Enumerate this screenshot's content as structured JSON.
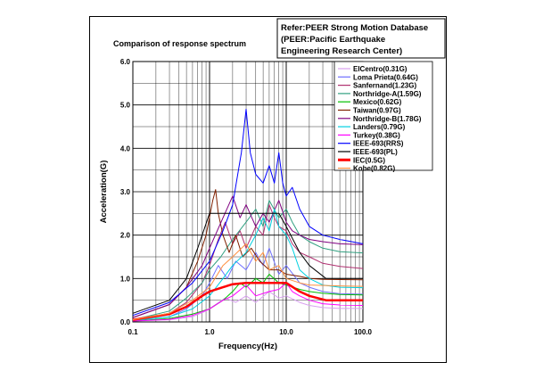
{
  "chart_data": {
    "type": "line",
    "title": "Comparison of response spectrum",
    "reference_lines": [
      "Refer:PEER Strong Motion Database",
      "(PEER:Pacific Earthquake",
      "Engineering Research Center)"
    ],
    "xlabel": "Frequency(Hz)",
    "ylabel": "Acceleration(G)",
    "x_scale": "log",
    "xlim": [
      0.1,
      100
    ],
    "ylim": [
      0,
      6
    ],
    "x_ticks": [
      "0.1",
      "1.0",
      "10.0",
      "100.0"
    ],
    "y_ticks": [
      "0.0",
      "1.0",
      "2.0",
      "3.0",
      "4.0",
      "5.0",
      "6.0"
    ],
    "grid": true,
    "legend_position": "top-right",
    "series": [
      {
        "name": "ElCentro(0.31G)",
        "color": "#d8a0f0",
        "width": 1,
        "points": [
          [
            0.1,
            0.02
          ],
          [
            0.3,
            0.05
          ],
          [
            0.6,
            0.12
          ],
          [
            0.9,
            0.25
          ],
          [
            1.2,
            0.4
          ],
          [
            1.6,
            0.55
          ],
          [
            2.2,
            0.45
          ],
          [
            3,
            0.6
          ],
          [
            4,
            0.45
          ],
          [
            6,
            0.7
          ],
          [
            8,
            0.55
          ],
          [
            10,
            0.6
          ],
          [
            15,
            0.45
          ],
          [
            20,
            0.38
          ],
          [
            30,
            0.33
          ],
          [
            50,
            0.31
          ],
          [
            100,
            0.31
          ]
        ]
      },
      {
        "name": "Loma Prieta(0.64G)",
        "color": "#7070ff",
        "width": 1,
        "points": [
          [
            0.1,
            0.04
          ],
          [
            0.3,
            0.12
          ],
          [
            0.5,
            0.3
          ],
          [
            0.8,
            0.6
          ],
          [
            1.0,
            0.9
          ],
          [
            1.3,
            1.3
          ],
          [
            1.7,
            1.0
          ],
          [
            2.2,
            1.4
          ],
          [
            3,
            1.2
          ],
          [
            4,
            1.6
          ],
          [
            5,
            1.3
          ],
          [
            6,
            1.7
          ],
          [
            8,
            1.1
          ],
          [
            10,
            1.3
          ],
          [
            15,
            0.9
          ],
          [
            20,
            0.8
          ],
          [
            30,
            0.7
          ],
          [
            50,
            0.65
          ],
          [
            100,
            0.64
          ]
        ]
      },
      {
        "name": "Sanfernand(1.23G)",
        "color": "#b03070",
        "width": 1,
        "points": [
          [
            0.1,
            0.05
          ],
          [
            0.3,
            0.2
          ],
          [
            0.5,
            0.45
          ],
          [
            0.8,
            0.9
          ],
          [
            1.0,
            1.3
          ],
          [
            1.3,
            1.9
          ],
          [
            1.6,
            2.3
          ],
          [
            2.0,
            1.8
          ],
          [
            2.5,
            2.1
          ],
          [
            3,
            1.7
          ],
          [
            4,
            2.2
          ],
          [
            5,
            2.0
          ],
          [
            6,
            2.7
          ],
          [
            7,
            2.4
          ],
          [
            8,
            2.2
          ],
          [
            10,
            2.1
          ],
          [
            12,
            1.8
          ],
          [
            15,
            1.6
          ],
          [
            20,
            1.5
          ],
          [
            30,
            1.35
          ],
          [
            50,
            1.28
          ],
          [
            100,
            1.23
          ]
        ]
      },
      {
        "name": "Northridge-A(1.59G)",
        "color": "#30a080",
        "width": 1,
        "points": [
          [
            0.1,
            0.05
          ],
          [
            0.3,
            0.25
          ],
          [
            0.5,
            0.55
          ],
          [
            0.8,
            0.9
          ],
          [
            1.0,
            1.2
          ],
          [
            1.4,
            1.5
          ],
          [
            2,
            1.9
          ],
          [
            3,
            2.3
          ],
          [
            4,
            2.6
          ],
          [
            5,
            2.2
          ],
          [
            6,
            2.8
          ],
          [
            8,
            2.4
          ],
          [
            10,
            2.6
          ],
          [
            12,
            2.3
          ],
          [
            15,
            2.0
          ],
          [
            20,
            1.85
          ],
          [
            30,
            1.7
          ],
          [
            50,
            1.62
          ],
          [
            100,
            1.59
          ]
        ]
      },
      {
        "name": "Mexico(0.62G)",
        "color": "#00c000",
        "width": 1,
        "points": [
          [
            0.1,
            0.02
          ],
          [
            0.3,
            0.08
          ],
          [
            0.6,
            0.18
          ],
          [
            1.0,
            0.3
          ],
          [
            1.5,
            0.5
          ],
          [
            2.0,
            0.7
          ],
          [
            2.5,
            0.9
          ],
          [
            3,
            0.8
          ],
          [
            4,
            1.0
          ],
          [
            5,
            0.9
          ],
          [
            6,
            1.1
          ],
          [
            8,
            0.9
          ],
          [
            10,
            0.85
          ],
          [
            15,
            0.75
          ],
          [
            20,
            0.7
          ],
          [
            30,
            0.66
          ],
          [
            50,
            0.63
          ],
          [
            100,
            0.62
          ]
        ]
      },
      {
        "name": "Taiwan(0.97G)",
        "color": "#802000",
        "width": 1,
        "points": [
          [
            0.1,
            0.1
          ],
          [
            0.3,
            0.4
          ],
          [
            0.5,
            0.8
          ],
          [
            0.7,
            1.4
          ],
          [
            0.9,
            2.0
          ],
          [
            1.1,
            2.8
          ],
          [
            1.2,
            3.05
          ],
          [
            1.3,
            2.5
          ],
          [
            1.5,
            2.0
          ],
          [
            1.8,
            1.6
          ],
          [
            2.2,
            2.0
          ],
          [
            2.7,
            1.5
          ],
          [
            3.5,
            1.7
          ],
          [
            4.5,
            1.4
          ],
          [
            6,
            1.2
          ],
          [
            8,
            1.2
          ],
          [
            10,
            1.1
          ],
          [
            15,
            1.05
          ],
          [
            20,
            1.0
          ],
          [
            30,
            0.98
          ],
          [
            100,
            0.97
          ]
        ]
      },
      {
        "name": "Northridge-B(1.78G)",
        "color": "#800080",
        "width": 1,
        "points": [
          [
            0.1,
            0.1
          ],
          [
            0.3,
            0.4
          ],
          [
            0.5,
            0.8
          ],
          [
            0.8,
            1.3
          ],
          [
            1.0,
            1.7
          ],
          [
            1.5,
            2.4
          ],
          [
            2,
            2.9
          ],
          [
            2.5,
            2.4
          ],
          [
            3,
            2.7
          ],
          [
            4,
            2.2
          ],
          [
            5,
            2.5
          ],
          [
            6,
            2.3
          ],
          [
            8,
            2.8
          ],
          [
            10,
            2.3
          ],
          [
            12,
            2.1
          ],
          [
            15,
            2.0
          ],
          [
            20,
            1.9
          ],
          [
            30,
            1.85
          ],
          [
            50,
            1.8
          ],
          [
            100,
            1.78
          ]
        ]
      },
      {
        "name": "Landers(0.79G)",
        "color": "#00d0e0",
        "width": 1,
        "points": [
          [
            0.1,
            0.03
          ],
          [
            0.3,
            0.12
          ],
          [
            0.6,
            0.3
          ],
          [
            1.0,
            0.6
          ],
          [
            1.5,
            1.0
          ],
          [
            2,
            1.3
          ],
          [
            3,
            1.6
          ],
          [
            4,
            2.0
          ],
          [
            5,
            2.4
          ],
          [
            6,
            2.1
          ],
          [
            7,
            2.6
          ],
          [
            8,
            2.2
          ],
          [
            10,
            2.0
          ],
          [
            12,
            1.7
          ],
          [
            15,
            1.2
          ],
          [
            20,
            1.0
          ],
          [
            30,
            0.85
          ],
          [
            50,
            0.8
          ],
          [
            100,
            0.79
          ]
        ]
      },
      {
        "name": "Turkey(0.38G)",
        "color": "#ff00ff",
        "width": 1,
        "points": [
          [
            0.1,
            0.02
          ],
          [
            0.3,
            0.06
          ],
          [
            0.6,
            0.15
          ],
          [
            1.0,
            0.3
          ],
          [
            1.5,
            0.5
          ],
          [
            2,
            0.6
          ],
          [
            3,
            0.85
          ],
          [
            4,
            0.6
          ],
          [
            6,
            0.7
          ],
          [
            8,
            0.75
          ],
          [
            10,
            0.9
          ],
          [
            12,
            0.7
          ],
          [
            15,
            0.6
          ],
          [
            20,
            0.5
          ],
          [
            30,
            0.42
          ],
          [
            50,
            0.39
          ],
          [
            100,
            0.38
          ]
        ]
      },
      {
        "name": "IEEE-693(RRS)",
        "color": "#0000ff",
        "width": 1,
        "points": [
          [
            0.1,
            0.15
          ],
          [
            0.3,
            0.45
          ],
          [
            0.6,
            0.9
          ],
          [
            1.0,
            1.4
          ],
          [
            1.5,
            2.1
          ],
          [
            2,
            2.7
          ],
          [
            2.6,
            3.9
          ],
          [
            3,
            4.9
          ],
          [
            3.4,
            3.9
          ],
          [
            4,
            3.4
          ],
          [
            5,
            3.2
          ],
          [
            6,
            3.6
          ],
          [
            7,
            3.2
          ],
          [
            8,
            3.9
          ],
          [
            9,
            3.2
          ],
          [
            10,
            2.9
          ],
          [
            12,
            3.1
          ],
          [
            15,
            2.6
          ],
          [
            20,
            2.2
          ],
          [
            30,
            2.0
          ],
          [
            50,
            1.9
          ],
          [
            100,
            1.8
          ]
        ]
      },
      {
        "name": "IEEE-693(PL)",
        "color": "#000000",
        "width": 1,
        "points": [
          [
            0.1,
            0.2
          ],
          [
            0.3,
            0.5
          ],
          [
            0.5,
            1.0
          ],
          [
            0.7,
            1.7
          ],
          [
            1.0,
            2.5
          ],
          [
            8,
            2.5
          ],
          [
            10,
            2.2
          ],
          [
            15,
            1.6
          ],
          [
            20,
            1.3
          ],
          [
            33,
            1.0
          ],
          [
            100,
            1.0
          ]
        ]
      },
      {
        "name": "IEC(0.5G)",
        "color": "#ff0000",
        "width": 2.5,
        "points": [
          [
            0.1,
            0.05
          ],
          [
            0.3,
            0.18
          ],
          [
            0.5,
            0.35
          ],
          [
            0.8,
            0.6
          ],
          [
            1.0,
            0.7
          ],
          [
            1.5,
            0.8
          ],
          [
            2,
            0.87
          ],
          [
            3,
            0.9
          ],
          [
            10,
            0.9
          ],
          [
            15,
            0.7
          ],
          [
            20,
            0.6
          ],
          [
            33,
            0.5
          ],
          [
            100,
            0.5
          ]
        ]
      },
      {
        "name": "Kobe(0.82G)",
        "color": "#ff9040",
        "width": 1,
        "points": [
          [
            0.1,
            0.05
          ],
          [
            0.3,
            0.2
          ],
          [
            0.6,
            0.5
          ],
          [
            1.0,
            0.8
          ],
          [
            1.5,
            1.3
          ],
          [
            2,
            1.5
          ],
          [
            3,
            1.8
          ],
          [
            4,
            1.4
          ],
          [
            5,
            1.6
          ],
          [
            6,
            1.2
          ],
          [
            8,
            1.3
          ],
          [
            10,
            1.0
          ],
          [
            15,
            0.9
          ],
          [
            20,
            0.85
          ],
          [
            50,
            0.83
          ],
          [
            100,
            0.82
          ]
        ]
      }
    ]
  }
}
